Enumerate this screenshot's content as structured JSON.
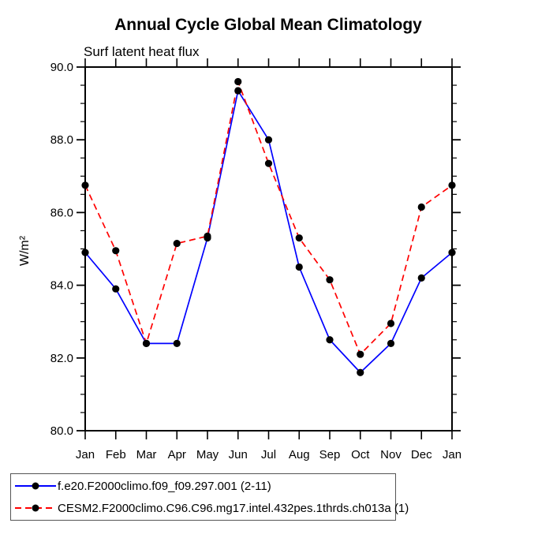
{
  "chart_data": {
    "type": "line",
    "title": "Annual Cycle Global Mean Climatology",
    "subtitle": "Surf latent heat flux",
    "ylabel": "W/m²",
    "categories": [
      "Jan",
      "Feb",
      "Mar",
      "Apr",
      "May",
      "Jun",
      "Jul",
      "Aug",
      "Sep",
      "Oct",
      "Nov",
      "Dec",
      "Jan"
    ],
    "ylim": [
      80.0,
      90.0
    ],
    "ytick_major": [
      80.0,
      82.0,
      84.0,
      86.0,
      88.0,
      90.0
    ],
    "ytick_labels": [
      "80.0",
      "82.0",
      "84.0",
      "86.0",
      "88.0",
      "90.0"
    ],
    "ytick_minor_step": 0.5,
    "grid": false,
    "legend_position": "bottom-left",
    "axis_color": "#000000",
    "series": [
      {
        "name": "f.e20.F2000climo.f09_f09.297.001 (2-11)",
        "color": "#0000ff",
        "style": "solid",
        "marker": "circle",
        "marker_color": "#000000",
        "values": [
          84.9,
          83.9,
          82.4,
          82.4,
          85.3,
          89.35,
          88.0,
          84.5,
          82.5,
          81.6,
          82.4,
          84.2,
          84.9
        ]
      },
      {
        "name": "CESM2.F2000climo.C96.C96.mg17.intel.432pes.1thrds.ch013a (1)",
        "color": "#ff0000",
        "style": "dashed",
        "marker": "circle",
        "marker_color": "#000000",
        "values": [
          86.75,
          84.95,
          82.4,
          85.15,
          85.35,
          89.6,
          87.35,
          85.3,
          84.15,
          82.1,
          82.95,
          86.15,
          86.75
        ]
      }
    ]
  }
}
